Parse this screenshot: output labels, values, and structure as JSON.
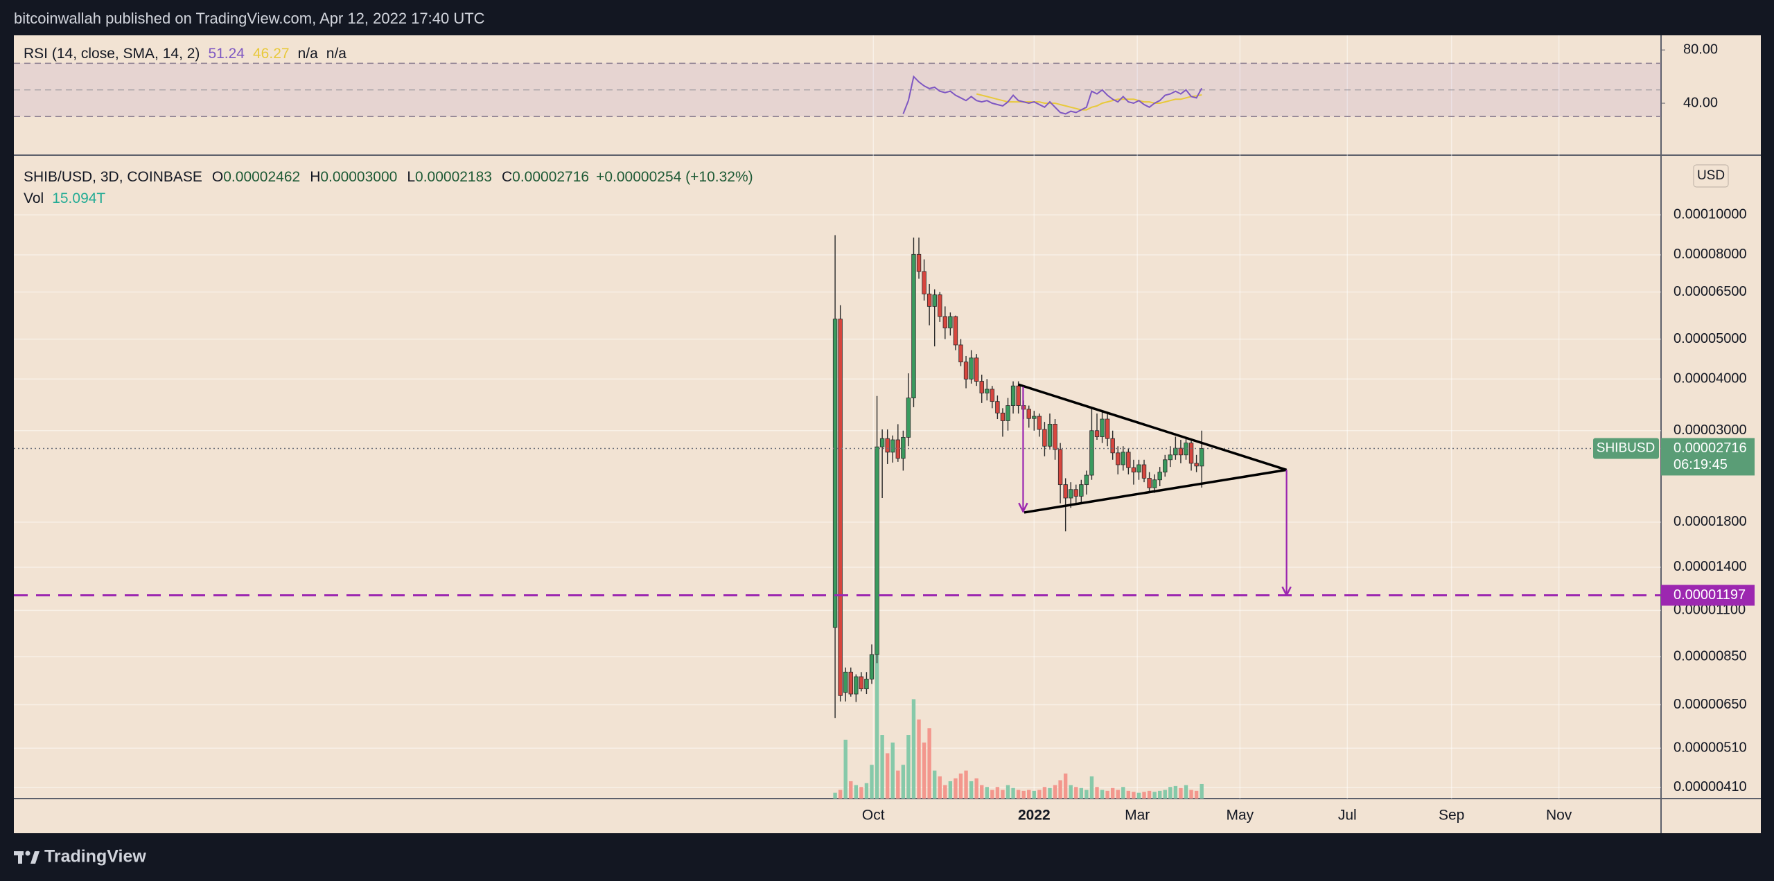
{
  "header": "bitcoinwallah published on TradingView.com, Apr 12, 2022 17:40 UTC",
  "footer": "TradingView",
  "chart_data": {
    "type": "candlestick",
    "symbol": "SHIB/USD, 3D, COINBASE",
    "ohlc_legend": [
      {
        "key": "O",
        "label": "0.00002462"
      },
      {
        "key": "H",
        "label": "0.00003000"
      },
      {
        "key": "L",
        "label": "0.00002183"
      },
      {
        "key": "C",
        "label": "0.00002716"
      }
    ],
    "change": "+0.00000254 (+10.32%)",
    "open": [
      1e-05,
      5.59e-05,
      6.96e-06,
      7.8e-06,
      6.9e-06,
      7.6e-06,
      7.1e-06,
      7.5e-06,
      8.6e-06,
      2.74e-05,
      2.87e-05,
      2.66e-05,
      2.85e-05,
      2.57e-05,
      2.89e-05,
      3.6e-05,
      8.02e-05,
      7.29e-05,
      6.43e-05,
      6e-05,
      6.4e-05,
      5.67e-05,
      5.32e-05,
      5.67e-05,
      4.84e-05,
      4.4e-05,
      4e-05,
      4.5e-05,
      3.95e-05,
      3.7e-05,
      3.78e-05,
      3.53e-05,
      3.31e-05,
      3.17e-05,
      3.45e-05,
      3.85e-05,
      3.45e-05,
      3.38e-05,
      3.21e-05,
      3.25e-05,
      3.02e-05,
      2.75e-05,
      3.11e-05,
      2.7e-05,
      2.22e-05,
      2.06e-05,
      2.16e-05,
      2.08e-05,
      2.22e-05,
      2.34e-05,
      3e-05,
      2.9e-05,
      3.2e-05,
      2.87e-05,
      2.65e-05,
      2.48e-05,
      2.66e-05,
      2.44e-05,
      2.38e-05,
      2.48e-05,
      2.3e-05,
      2.18e-05,
      2.28e-05,
      2.38e-05,
      2.55e-05,
      2.62e-05,
      2.72e-05,
      2.62e-05,
      2.8e-05,
      2.5e-05,
      2.462e-05
    ],
    "high": [
      8.93e-05,
      6.04e-05,
      8e-06,
      8e-06,
      7.7e-06,
      7.8e-06,
      7.8e-06,
      9.1e-06,
      3.64e-05,
      3.02e-05,
      3.02e-05,
      2.92e-05,
      3.11e-05,
      3e-05,
      4.13e-05,
      8.81e-05,
      8.81e-05,
      7.8e-05,
      6.8e-05,
      6.6e-05,
      6.5e-05,
      6e-05,
      5.8e-05,
      5.7e-05,
      5e-05,
      4.55e-05,
      4.7e-05,
      4.6e-05,
      4.1e-05,
      4e-05,
      3.85e-05,
      3.65e-05,
      3.4e-05,
      3.6e-05,
      3.95e-05,
      3.95e-05,
      3.55e-05,
      3.45e-05,
      3.35e-05,
      3.3e-05,
      3.15e-05,
      3.3e-05,
      3.2e-05,
      2.8e-05,
      2.3e-05,
      2.25e-05,
      2.22e-05,
      2.28e-05,
      2.4e-05,
      3.4e-05,
      3.3e-05,
      3.35e-05,
      3.3e-05,
      3e-05,
      2.75e-05,
      2.75e-05,
      2.72e-05,
      2.55e-05,
      2.55e-05,
      2.55e-05,
      2.38e-05,
      2.35e-05,
      2.45e-05,
      2.62e-05,
      2.75e-05,
      2.9e-05,
      2.85e-05,
      2.9e-05,
      2.85e-05,
      2.62e-05,
      3e-05
    ],
    "low": [
      6.03e-06,
      6.62e-06,
      6.62e-06,
      6.8e-06,
      6.6e-06,
      7e-06,
      6.9e-06,
      7.3e-06,
      8.2e-06,
      2.06e-05,
      2.49e-05,
      2.51e-05,
      2.52e-05,
      2.4e-05,
      2.75e-05,
      3.42e-05,
      7e-05,
      6.2e-05,
      5.4e-05,
      4.8e-05,
      5.5e-05,
      5e-05,
      5.1e-05,
      4.7e-05,
      4.3e-05,
      3.8e-05,
      3.9e-05,
      3.85e-05,
      3.5e-05,
      3.55e-05,
      3.4e-05,
      3.2e-05,
      2.9e-05,
      3e-05,
      3.3e-05,
      3.3e-05,
      3.2e-05,
      3.05e-05,
      3e-05,
      2.9e-05,
      2.6e-05,
      2.7e-05,
      2.55e-05,
      2e-05,
      1.71e-05,
      1.95e-05,
      1.98e-05,
      2e-05,
      2.1e-05,
      2.28e-05,
      2.85e-05,
      2.8e-05,
      2.75e-05,
      2.55e-05,
      2.35e-05,
      2.4e-05,
      2.35e-05,
      2.22e-05,
      2.28e-05,
      2.25e-05,
      2.12e-05,
      2.12e-05,
      2.2e-05,
      2.32e-05,
      2.45e-05,
      2.55e-05,
      2.5e-05,
      2.55e-05,
      2.4e-05,
      2.38e-05,
      2.183e-05
    ],
    "close": [
      5.59e-05,
      6.84e-06,
      7.8e-06,
      6.9e-06,
      7.6e-06,
      7.1e-06,
      7.5e-06,
      8.6e-06,
      2.74e-05,
      2.87e-05,
      2.66e-05,
      2.85e-05,
      2.57e-05,
      2.89e-05,
      3.6e-05,
      8.02e-05,
      7.29e-05,
      6.43e-05,
      6e-05,
      6.4e-05,
      5.67e-05,
      5.32e-05,
      5.67e-05,
      4.84e-05,
      4.4e-05,
      4e-05,
      4.5e-05,
      3.95e-05,
      3.7e-05,
      3.78e-05,
      3.53e-05,
      3.31e-05,
      3.17e-05,
      3.45e-05,
      3.85e-05,
      3.45e-05,
      3.38e-05,
      3.21e-05,
      3.25e-05,
      3.02e-05,
      2.75e-05,
      3.11e-05,
      2.7e-05,
      2.22e-05,
      2.06e-05,
      2.16e-05,
      2.08e-05,
      2.22e-05,
      2.34e-05,
      3e-05,
      2.9e-05,
      3.2e-05,
      2.87e-05,
      2.65e-05,
      2.48e-05,
      2.66e-05,
      2.44e-05,
      2.38e-05,
      2.48e-05,
      2.3e-05,
      2.18e-05,
      2.28e-05,
      2.38e-05,
      2.55e-05,
      2.62e-05,
      2.72e-05,
      2.62e-05,
      2.8e-05,
      2.5e-05,
      2.462e-05,
      2.716e-05
    ],
    "up_color": "#3a9a5e",
    "down_color": "#d7463e",
    "volume": {
      "name": "Vol",
      "values": [
        6,
        9,
        61,
        18,
        14,
        12,
        16,
        35,
        150,
        66,
        47,
        58,
        29,
        35,
        66,
        103,
        82,
        58,
        73,
        29,
        23,
        14,
        18,
        21,
        26,
        29,
        18,
        21,
        14,
        12,
        9,
        12,
        9,
        14,
        11,
        9,
        8,
        9,
        8,
        9,
        12,
        11,
        14,
        19,
        26,
        14,
        12,
        11,
        9,
        23,
        12,
        9,
        8,
        11,
        9,
        12,
        8,
        7,
        6,
        7,
        8,
        7,
        8,
        9,
        12,
        13,
        11,
        14,
        9,
        8,
        15.094
      ],
      "last_label": "15.094T",
      "up_color": "#86c9a9",
      "down_color": "#f3978d"
    },
    "xlim": [
      -156.8,
      157.7
    ],
    "xticks": [
      {
        "value": 7.3,
        "label": "Oct"
      },
      {
        "value": 38,
        "label": "2022"
      },
      {
        "value": 57.7,
        "label": "Mar"
      },
      {
        "value": 77.3,
        "label": "May"
      },
      {
        "value": 97.8,
        "label": "Jul"
      },
      {
        "value": 117.7,
        "label": "Sep"
      },
      {
        "value": 138.2,
        "label": "Nov"
      }
    ],
    "ylim": [
      3.85e-06,
      0.000139
    ],
    "log_scale": true,
    "yticks": [
      {
        "value": 0.0001,
        "label": "0.00010000"
      },
      {
        "value": 8e-05,
        "label": "0.00008000"
      },
      {
        "value": 6.5e-05,
        "label": "0.00006500"
      },
      {
        "value": 5e-05,
        "label": "0.00005000"
      },
      {
        "value": 4e-05,
        "label": "0.00004000"
      },
      {
        "value": 3e-05,
        "label": "0.00003000"
      },
      {
        "value": 1.8e-05,
        "label": "0.00001800"
      },
      {
        "value": 1.4e-05,
        "label": "0.00001400"
      },
      {
        "value": 1.1e-05,
        "label": "0.00001100"
      },
      {
        "value": 8.5e-06,
        "label": "0.00000850"
      },
      {
        "value": 6.5e-06,
        "label": "0.00000650"
      },
      {
        "value": 5.1e-06,
        "label": "0.00000510"
      },
      {
        "value": 4.1e-06,
        "label": "0.00000410"
      }
    ],
    "grid": true,
    "price_badge": {
      "symbol": "SHIBUSD",
      "countdown": "06:19:45",
      "color": "#5a9d76"
    },
    "currency": "USD",
    "hline": {
      "value": 1.197e-05,
      "color": "#9c27b0"
    },
    "trendlines": [
      [
        [
          35,
          3.88e-05
        ],
        [
          86.2,
          2.41e-05
        ]
      ],
      [
        [
          36.1,
          1.9e-05
        ],
        [
          86.2,
          2.41e-05
        ]
      ]
    ],
    "arrows": [
      [
        [
          35.9,
          3.83e-05
        ],
        [
          35.9,
          1.91e-05
        ]
      ],
      [
        [
          86.2,
          2.41e-05
        ],
        [
          86.2,
          1.197e-05
        ]
      ]
    ],
    "rsi": {
      "title": "RSI (14, close, SMA, 14, 2)",
      "values": [
        null,
        null,
        null,
        null,
        null,
        null,
        null,
        null,
        null,
        null,
        null,
        null,
        null,
        32,
        42,
        60,
        56,
        53,
        51,
        52,
        49,
        48,
        49,
        46,
        44,
        42,
        45,
        42,
        41,
        42,
        40,
        39,
        38,
        41,
        46,
        42,
        41,
        40,
        41,
        39,
        37,
        41,
        37,
        33,
        32,
        34,
        33,
        35,
        37,
        49,
        47,
        50,
        46,
        43,
        41,
        45,
        41,
        40,
        42,
        39,
        37,
        40,
        42,
        46,
        47,
        49,
        47,
        50,
        45,
        44,
        51.24
      ],
      "color": "#7e57c2",
      "sma": [
        null,
        null,
        null,
        null,
        null,
        null,
        null,
        null,
        null,
        null,
        null,
        null,
        null,
        null,
        null,
        null,
        null,
        null,
        null,
        null,
        null,
        null,
        null,
        null,
        null,
        null,
        null,
        47,
        46,
        45,
        44,
        43,
        42,
        41,
        41,
        41,
        41,
        41,
        41,
        41,
        40,
        40,
        40,
        39,
        38,
        37,
        36,
        35,
        35,
        37,
        38,
        40,
        41,
        42,
        43,
        43,
        43,
        43,
        42,
        41,
        41,
        40,
        40,
        41,
        42,
        43,
        43,
        44,
        45,
        45.5,
        46.27
      ],
      "sma_color": "#e8c93a",
      "na": [
        "n/a",
        "n/a"
      ],
      "ylim": [
        1,
        91
      ],
      "yticks": [
        {
          "value": 80,
          "label": "80.00"
        },
        {
          "value": 40,
          "label": "40.00"
        }
      ],
      "bands": [
        70,
        50,
        30
      ]
    }
  }
}
